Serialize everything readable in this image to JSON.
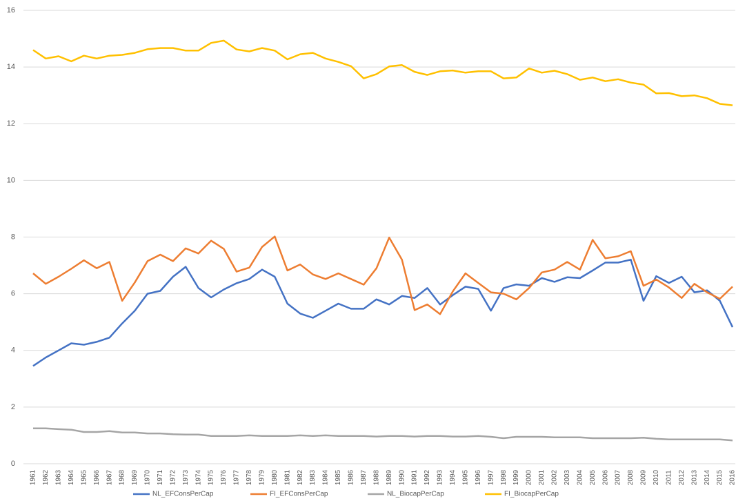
{
  "chart_data": {
    "type": "line",
    "categories": [
      "1961",
      "1962",
      "1963",
      "1964",
      "1965",
      "1966",
      "1967",
      "1968",
      "1969",
      "1970",
      "1971",
      "1972",
      "1973",
      "1974",
      "1975",
      "1976",
      "1977",
      "1978",
      "1979",
      "1980",
      "1981",
      "1982",
      "1983",
      "1984",
      "1985",
      "1986",
      "1987",
      "1988",
      "1989",
      "1990",
      "1991",
      "1992",
      "1993",
      "1994",
      "1995",
      "1996",
      "1997",
      "1998",
      "1999",
      "2000",
      "2001",
      "2002",
      "2003",
      "2004",
      "2005",
      "2006",
      "2007",
      "2008",
      "2009",
      "2010",
      "2011",
      "2012",
      "2013",
      "2014",
      "2015",
      "2016"
    ],
    "series": [
      {
        "name": "NL_EFConsPerCap",
        "color": "#4472c4",
        "values": [
          3.45,
          3.75,
          4.0,
          4.25,
          4.2,
          4.3,
          4.45,
          4.95,
          5.4,
          6.0,
          6.1,
          6.6,
          6.95,
          6.2,
          5.87,
          6.15,
          6.37,
          6.52,
          6.85,
          6.6,
          5.65,
          5.3,
          5.15,
          5.4,
          5.65,
          5.47,
          5.47,
          5.8,
          5.62,
          5.92,
          5.85,
          6.2,
          5.62,
          5.95,
          6.25,
          6.17,
          5.4,
          6.2,
          6.33,
          6.28,
          6.55,
          6.42,
          6.58,
          6.55,
          6.82,
          7.1,
          7.1,
          7.2,
          5.75,
          6.62,
          6.38,
          6.6,
          6.05,
          6.12,
          5.75,
          4.82
        ]
      },
      {
        "name": "FI_EFConsPerCap",
        "color": "#ed7d31",
        "values": [
          6.72,
          6.35,
          6.6,
          6.88,
          7.18,
          6.9,
          7.12,
          5.75,
          6.4,
          7.15,
          7.38,
          7.15,
          7.6,
          7.42,
          7.87,
          7.58,
          6.78,
          6.92,
          7.65,
          8.02,
          6.82,
          7.03,
          6.68,
          6.52,
          6.72,
          6.52,
          6.32,
          6.9,
          7.98,
          7.2,
          5.42,
          5.62,
          5.28,
          6.08,
          6.72,
          6.38,
          6.05,
          6.0,
          5.8,
          6.2,
          6.75,
          6.85,
          7.12,
          6.85,
          7.9,
          7.25,
          7.32,
          7.5,
          6.28,
          6.5,
          6.22,
          5.85,
          6.35,
          6.05,
          5.82,
          6.25
        ]
      },
      {
        "name": "NL_BiocapPerCap",
        "color": "#a5a5a5",
        "values": [
          1.25,
          1.25,
          1.22,
          1.2,
          1.12,
          1.12,
          1.15,
          1.1,
          1.1,
          1.07,
          1.07,
          1.04,
          1.03,
          1.03,
          0.98,
          0.98,
          0.98,
          1.0,
          0.98,
          0.98,
          0.98,
          1.0,
          0.98,
          1.0,
          0.98,
          0.98,
          0.98,
          0.96,
          0.98,
          0.98,
          0.96,
          0.98,
          0.98,
          0.96,
          0.96,
          0.98,
          0.95,
          0.9,
          0.95,
          0.95,
          0.95,
          0.93,
          0.93,
          0.93,
          0.9,
          0.9,
          0.9,
          0.9,
          0.92,
          0.88,
          0.86,
          0.86,
          0.86,
          0.86,
          0.86,
          0.82
        ]
      },
      {
        "name": "FI_BiocapPerCap",
        "color": "#ffc000",
        "values": [
          14.6,
          14.3,
          14.38,
          14.2,
          14.4,
          14.3,
          14.4,
          14.43,
          14.5,
          14.63,
          14.67,
          14.67,
          14.58,
          14.58,
          14.85,
          14.93,
          14.62,
          14.55,
          14.67,
          14.58,
          14.27,
          14.45,
          14.5,
          14.3,
          14.18,
          14.03,
          13.6,
          13.75,
          14.02,
          14.07,
          13.83,
          13.72,
          13.85,
          13.88,
          13.8,
          13.85,
          13.85,
          13.6,
          13.63,
          13.95,
          13.8,
          13.87,
          13.75,
          13.55,
          13.63,
          13.5,
          13.57,
          13.45,
          13.38,
          13.07,
          13.08,
          12.97,
          13.0,
          12.9,
          12.7,
          12.65
        ]
      }
    ],
    "ylim": [
      0,
      16
    ],
    "yticks": [
      0,
      2,
      4,
      6,
      8,
      10,
      12,
      14,
      16
    ],
    "grid": true,
    "legend": "bottom"
  }
}
